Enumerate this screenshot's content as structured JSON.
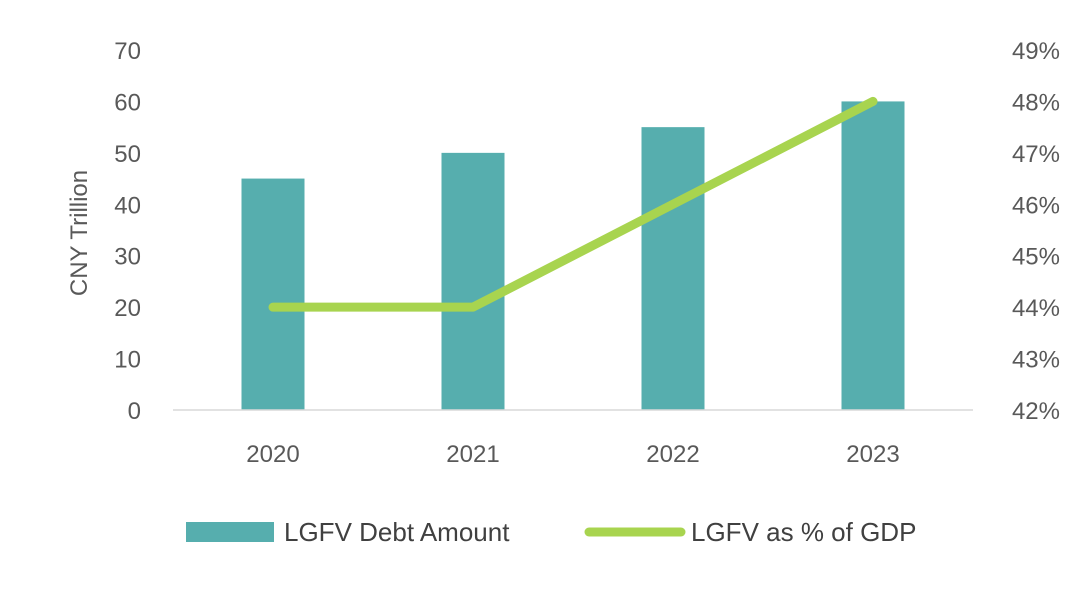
{
  "chart_data": {
    "type": "bar",
    "categories": [
      "2020",
      "2021",
      "2022",
      "2023"
    ],
    "series": [
      {
        "name": "LGFV Debt Amount",
        "kind": "bar",
        "axis": "left",
        "color": "#56AEAE",
        "values": [
          45,
          50,
          55,
          60
        ]
      },
      {
        "name": "LGFV as % of GDP",
        "kind": "line",
        "axis": "right",
        "color": "#A8D44F",
        "values": [
          44,
          44,
          46,
          48
        ]
      }
    ],
    "ylabel": "CNY Trillion",
    "ylim": [
      0,
      70
    ],
    "y_ticks": [
      "0",
      "10",
      "20",
      "30",
      "40",
      "50",
      "60",
      "70"
    ],
    "y2lim": [
      42,
      49
    ],
    "y2_ticks": [
      "42%",
      "43%",
      "44%",
      "45%",
      "46%",
      "47%",
      "48%",
      "49%"
    ],
    "legend_position": "bottom",
    "grid": false
  }
}
